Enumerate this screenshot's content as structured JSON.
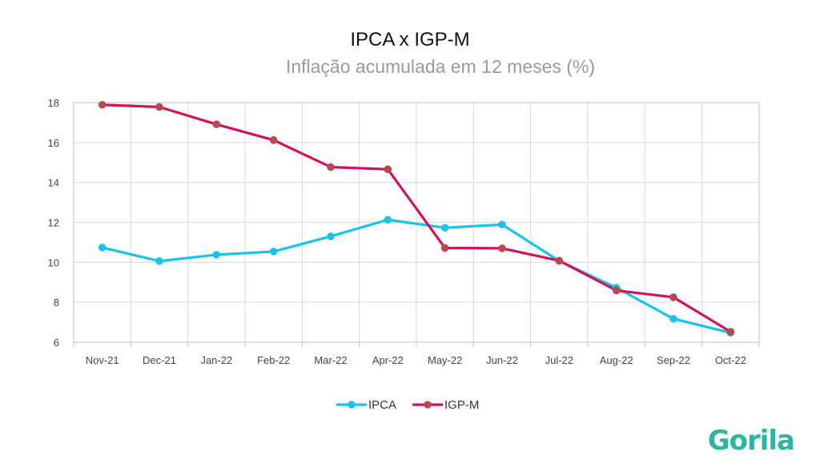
{
  "chart_data": {
    "type": "line",
    "title": "IPCA x IGP-M",
    "subtitle": "Inflação acumulada em 12 meses (%)",
    "categories": [
      "Nov-21",
      "Dec-21",
      "Jan-22",
      "Feb-22",
      "Mar-22",
      "Apr-22",
      "May-22",
      "Jun-22",
      "Jul-22",
      "Aug-22",
      "Sep-22",
      "Oct-22"
    ],
    "ylim": [
      6,
      18
    ],
    "yticks": [
      6,
      8,
      10,
      12,
      14,
      16,
      18
    ],
    "grid": true,
    "legend_position": "bottom",
    "series": [
      {
        "name": "IPCA",
        "color": "#19c3ec",
        "marker_color": "#19c3ec",
        "values": [
          10.74,
          10.06,
          10.38,
          10.54,
          11.3,
          12.13,
          11.73,
          11.89,
          10.07,
          8.73,
          7.17,
          6.47
        ]
      },
      {
        "name": "IGP-M",
        "color": "#d0135e",
        "marker_color": "#b8474e",
        "values": [
          17.89,
          17.78,
          16.91,
          16.12,
          14.77,
          14.66,
          10.72,
          10.7,
          10.08,
          8.59,
          8.25,
          6.52
        ]
      }
    ]
  },
  "logo": {
    "text": "Gorila",
    "color": "#2bb5a2"
  }
}
